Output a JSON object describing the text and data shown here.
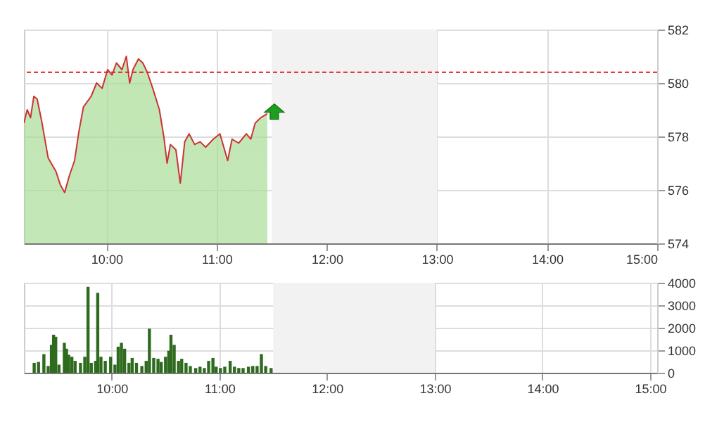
{
  "chart_data": [
    {
      "type": "area",
      "color": "#cc3333",
      "x": [
        9.25,
        9.28,
        9.31,
        9.34,
        9.37,
        9.41,
        9.47,
        9.54,
        9.58,
        9.62,
        9.66,
        9.71,
        9.75,
        9.79,
        9.86,
        9.91,
        9.96,
        10.01,
        10.05,
        10.09,
        10.14,
        10.18,
        10.21,
        10.24,
        10.29,
        10.33,
        10.37,
        10.42,
        10.48,
        10.52,
        10.55,
        10.58,
        10.63,
        10.67,
        10.71,
        10.75,
        10.8,
        10.85,
        10.9,
        10.97,
        11.03,
        11.1,
        11.14,
        11.2,
        11.27,
        11.31,
        11.35,
        11.4,
        11.46
      ],
      "values": [
        578.5,
        579.0,
        578.7,
        579.5,
        579.4,
        578.6,
        577.2,
        576.7,
        576.2,
        575.9,
        576.5,
        577.1,
        578.2,
        579.1,
        579.5,
        580.0,
        579.8,
        580.5,
        580.3,
        580.75,
        580.5,
        581.0,
        580.0,
        580.5,
        580.9,
        580.75,
        580.4,
        579.8,
        579.0,
        578.0,
        577.0,
        577.7,
        577.5,
        576.25,
        577.8,
        578.1,
        577.7,
        577.8,
        577.6,
        577.9,
        578.1,
        577.1,
        577.9,
        577.75,
        578.1,
        577.9,
        578.5,
        578.7,
        578.85
      ],
      "xlim": [
        9.25,
        15
      ],
      "xticks": [
        {
          "value": 10,
          "label": "10:00"
        },
        {
          "value": 11,
          "label": "11:00"
        },
        {
          "value": 12,
          "label": "12:00"
        },
        {
          "value": 13,
          "label": "13:00"
        },
        {
          "value": 14,
          "label": "14:00"
        },
        {
          "value": 15,
          "label": "15:00"
        }
      ],
      "ylim": [
        574,
        582
      ],
      "yticks": [
        574,
        576,
        578,
        580,
        582
      ],
      "grid": true,
      "ref_lines": [
        {
          "axis": "y",
          "value": 580.4,
          "color": "#dd2222",
          "line_style": "dashed"
        }
      ],
      "bands": [
        {
          "axis": "x",
          "from": 11.5,
          "to": 13,
          "color": "#f2f2f2"
        }
      ]
    },
    {
      "type": "bar",
      "color": "#2e6b1f",
      "x": [
        9.28,
        9.32,
        9.37,
        9.41,
        9.44,
        9.46,
        9.48,
        9.51,
        9.56,
        9.58,
        9.6,
        9.63,
        9.66,
        9.71,
        9.75,
        9.78,
        9.81,
        9.85,
        9.87,
        9.9,
        9.94,
        9.99,
        10.03,
        10.06,
        10.09,
        10.12,
        10.16,
        10.19,
        10.23,
        10.28,
        10.32,
        10.35,
        10.39,
        10.43,
        10.46,
        10.5,
        10.53,
        10.55,
        10.58,
        10.62,
        10.65,
        10.69,
        10.73,
        10.78,
        10.82,
        10.86,
        10.9,
        10.94,
        10.97,
        11.01,
        11.05,
        11.1,
        11.14,
        11.18,
        11.22,
        11.27,
        11.31,
        11.35,
        11.39,
        11.43,
        11.48
      ],
      "values": [
        440,
        480,
        830,
        300,
        1240,
        1690,
        1600,
        360,
        1330,
        1070,
        800,
        710,
        530,
        440,
        710,
        3820,
        440,
        530,
        3550,
        710,
        530,
        710,
        360,
        1160,
        1330,
        1070,
        440,
        660,
        440,
        300,
        530,
        1960,
        660,
        620,
        480,
        710,
        980,
        1690,
        1240,
        530,
        620,
        440,
        300,
        210,
        270,
        210,
        530,
        660,
        270,
        210,
        270,
        530,
        270,
        210,
        210,
        270,
        300,
        300,
        830,
        300,
        210
      ],
      "xlim": [
        9.25,
        15
      ],
      "xticks": [
        {
          "value": 10,
          "label": "10:00"
        },
        {
          "value": 11,
          "label": "11:00"
        },
        {
          "value": 12,
          "label": "12:00"
        },
        {
          "value": 13,
          "label": "13:00"
        },
        {
          "value": 14,
          "label": "14:00"
        },
        {
          "value": 15,
          "label": "15:00"
        }
      ],
      "ylim": [
        0,
        4000
      ],
      "yticks": [
        0,
        1000,
        2000,
        3000,
        4000
      ],
      "grid": true,
      "bands": [
        {
          "axis": "x",
          "from": 11.5,
          "to": 13,
          "color": "#f2f2f2"
        }
      ]
    }
  ]
}
